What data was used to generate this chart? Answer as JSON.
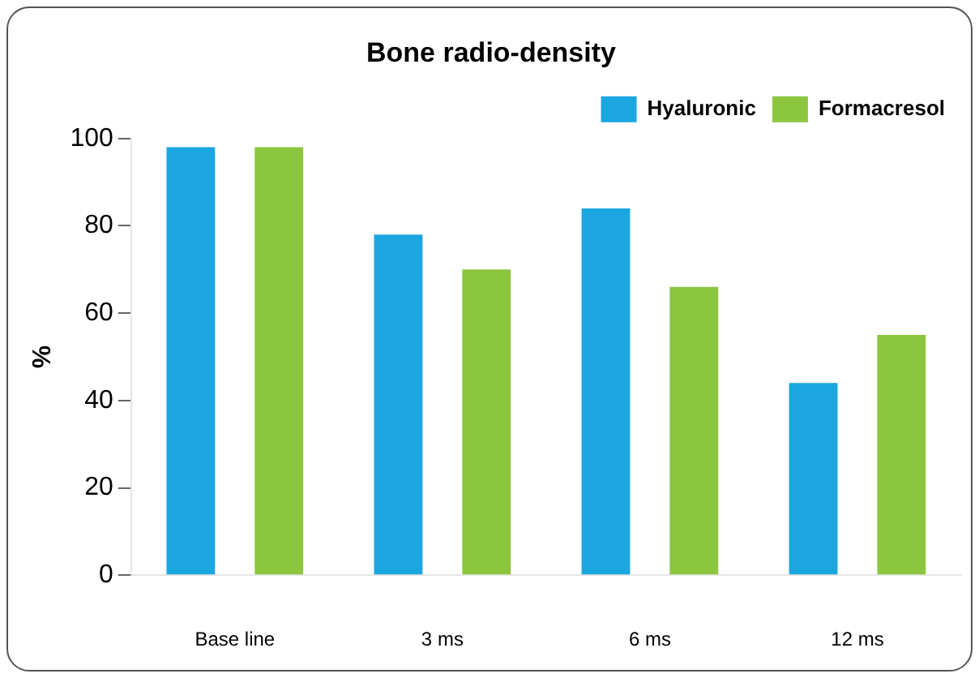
{
  "chart_data": {
    "type": "bar",
    "title": "Bone radio-density",
    "ylabel": "%",
    "categories": [
      "Base line",
      "3 ms",
      "6 ms",
      "12 ms"
    ],
    "series": [
      {
        "name": "Hyaluronic",
        "color": "#1ba6e0",
        "values": [
          98,
          78,
          84,
          44
        ]
      },
      {
        "name": "Formacresol",
        "color": "#8cc63f",
        "values": [
          98,
          70,
          66,
          55
        ]
      }
    ],
    "ylim": [
      0,
      100
    ],
    "yticks": [
      0,
      20,
      40,
      60,
      80,
      100
    ],
    "grid": false,
    "legend": "top right"
  }
}
